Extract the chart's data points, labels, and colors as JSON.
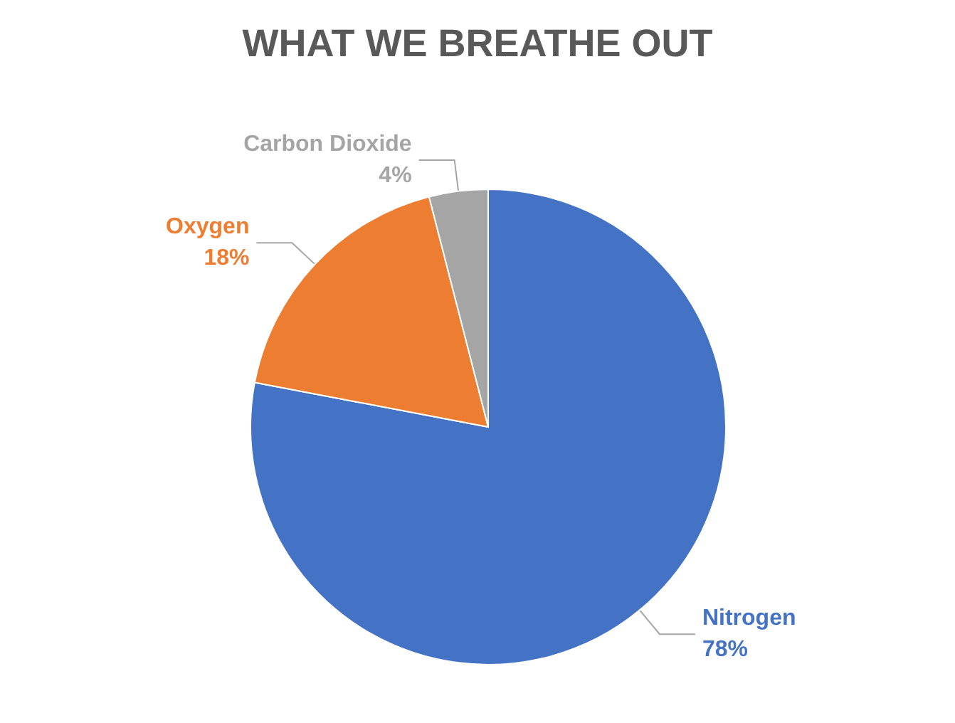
{
  "chart_data": {
    "type": "pie",
    "title": "WHAT WE BREATHE OUT",
    "categories": [
      "Nitrogen",
      "Oxygen",
      "Carbon Dioxide"
    ],
    "values": [
      78,
      18,
      4
    ],
    "value_labels": [
      "78%",
      "18%",
      "4%"
    ],
    "colors": [
      "#4472c4",
      "#ed7d31",
      "#a5a5a5"
    ],
    "legend": false
  }
}
